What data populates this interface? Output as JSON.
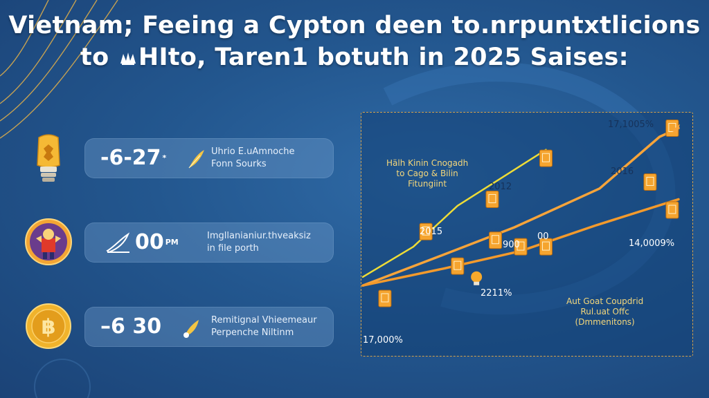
{
  "title": {
    "line1": "Vietnam;  Feeing a Cypton deen to.nrpuntxtlicions",
    "line2_prefix": "to ",
    "line2_icon": "crab-icon",
    "line2_rest": "HIto, Taren1 botuth in 2025 Saises:"
  },
  "stats": [
    {
      "icon": "lightbulb-icon",
      "value": "-6-27",
      "value_sup": "*",
      "glyph": "feather-icon",
      "lines": [
        "Uhrio E.uAmnoche",
        "Fonn Sourks"
      ]
    },
    {
      "icon": "mascot-icon",
      "value": "00",
      "value_sup": "PM",
      "glyph": "quill-icon",
      "lines": [
        "Imgllanianiur.thveaksiz",
        "in file porth"
      ]
    },
    {
      "icon": "bitcoin-coin-icon",
      "value": "–6 30",
      "value_sup": "",
      "glyph": "brush-icon",
      "lines": [
        "Remitignal Vhieemeaur",
        "Perpenche Niltinm"
      ]
    }
  ],
  "chart_data": {
    "type": "line",
    "title": "",
    "xlabel": "",
    "ylabel": "",
    "annotations": [
      {
        "text": "17,1005%"
      },
      {
        "text": "2016"
      },
      {
        "text": "2012"
      },
      {
        "text": "2015"
      },
      {
        "text": "900"
      },
      {
        "text": "00"
      },
      {
        "text": "14,0009%"
      },
      {
        "text": "2211%"
      },
      {
        "text": "17,000%"
      }
    ],
    "notes": [
      {
        "lines": [
          "Hälh Kinin Cnogadh",
          "to Cago & Bilin",
          "Fitungiint"
        ]
      },
      {
        "lines": [
          "Aut Goat Coupdrid",
          "Rul.uat Offc",
          "(Dmmenitons)"
        ]
      }
    ],
    "series": [
      {
        "color": "#eedc37",
        "values": [
          [
            0.0,
            0.27
          ],
          [
            0.16,
            0.41
          ],
          [
            0.3,
            0.6
          ],
          [
            0.58,
            0.86
          ]
        ]
      },
      {
        "color": "#f7a43a",
        "values": [
          [
            0.0,
            0.23
          ],
          [
            0.25,
            0.37
          ],
          [
            0.48,
            0.5
          ],
          [
            0.75,
            0.68
          ],
          [
            0.94,
            0.92
          ],
          [
            1.0,
            0.96
          ]
        ]
      },
      {
        "color": "#f39a2c",
        "values": [
          [
            0.0,
            0.23
          ],
          [
            0.26,
            0.31
          ],
          [
            0.5,
            0.39
          ],
          [
            0.74,
            0.51
          ],
          [
            1.0,
            0.63
          ]
        ]
      }
    ],
    "markers": [
      {
        "icon": "stack-icon",
        "x": 0.98,
        "y": 0.96
      },
      {
        "icon": "stack-icon",
        "x": 0.58,
        "y": 0.82
      },
      {
        "icon": "stack-icon",
        "x": 0.91,
        "y": 0.71
      },
      {
        "icon": "stack-icon",
        "x": 0.41,
        "y": 0.63
      },
      {
        "icon": "stack-icon",
        "x": 0.98,
        "y": 0.58
      },
      {
        "icon": "stack-icon",
        "x": 0.2,
        "y": 0.48
      },
      {
        "icon": "stack-icon",
        "x": 0.42,
        "y": 0.44
      },
      {
        "icon": "stack-icon",
        "x": 0.5,
        "y": 0.41
      },
      {
        "icon": "stack-icon",
        "x": 0.58,
        "y": 0.41
      },
      {
        "icon": "stack-icon",
        "x": 0.3,
        "y": 0.32
      },
      {
        "icon": "bulb-icon",
        "x": 0.36,
        "y": 0.27
      },
      {
        "icon": "stack-icon",
        "x": 0.07,
        "y": 0.17
      }
    ]
  }
}
